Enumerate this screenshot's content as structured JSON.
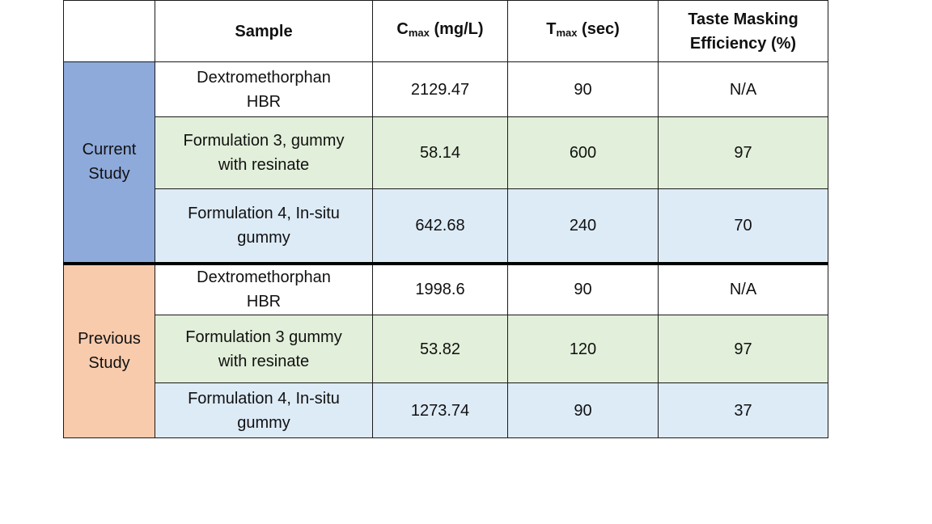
{
  "table": {
    "headers": {
      "blank": "",
      "sample": "Sample",
      "cmax_base": "C",
      "cmax_sub": "max",
      "cmax_unit": " (mg/L)",
      "tmax_base": "T",
      "tmax_sub": "max",
      "tmax_unit": " (sec)",
      "taste_line1": "Taste Masking",
      "taste_line2": "Efficiency (%)"
    },
    "groups": [
      {
        "label_line1": "Current",
        "label_line2": "Study",
        "color": "#8eaadb",
        "rows": [
          {
            "sample_line1": "Dextromethorphan",
            "sample_line2": "HBR",
            "cmax": "2129.47",
            "tmax": "90",
            "taste": "N/A",
            "bg": "#ffffff"
          },
          {
            "sample_line1": "Formulation 3, gummy",
            "sample_line2": "with resinate",
            "cmax": "58.14",
            "tmax": "600",
            "taste": "97",
            "bg": "#e2efda"
          },
          {
            "sample_line1": "Formulation 4, In-situ",
            "sample_line2": "gummy",
            "cmax": "642.68",
            "tmax": "240",
            "taste": "70",
            "bg": "#ddebf7"
          }
        ]
      },
      {
        "label_line1": "Previous",
        "label_line2": "Study",
        "color": "#f8cbad",
        "rows": [
          {
            "sample_line1": "Dextromethorphan",
            "sample_line2": "HBR",
            "cmax": "1998.6",
            "tmax": "90",
            "taste": "N/A",
            "bg": "#ffffff"
          },
          {
            "sample_line1": "Formulation 3 gummy",
            "sample_line2": "with resinate",
            "cmax": "53.82",
            "tmax": "120",
            "taste": "97",
            "bg": "#e2efda"
          },
          {
            "sample_line1": "Formulation 4, In-situ",
            "sample_line2": "gummy",
            "cmax": "1273.74",
            "tmax": "90",
            "taste": "37",
            "bg": "#ddebf7"
          }
        ]
      }
    ]
  }
}
